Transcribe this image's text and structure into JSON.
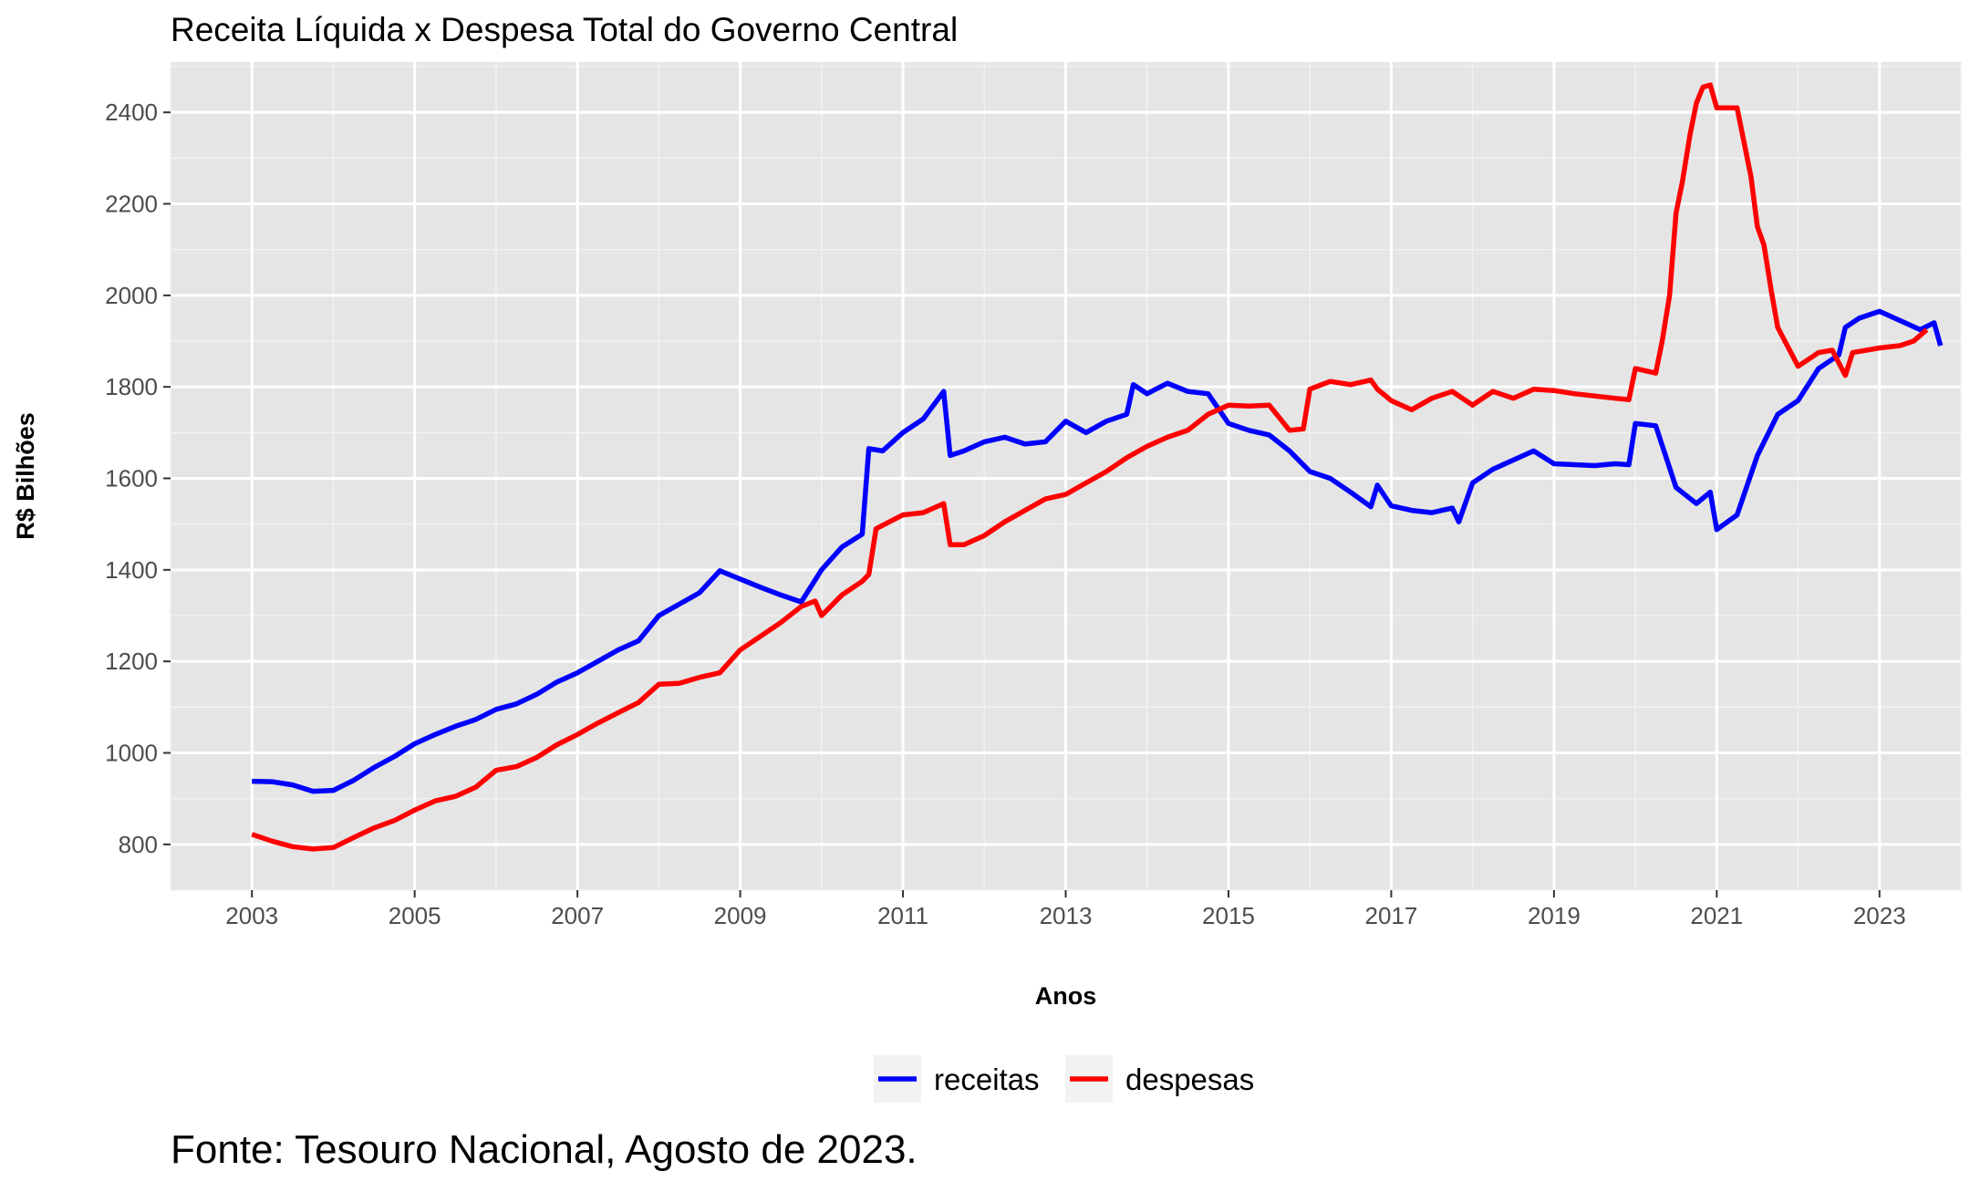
{
  "chart_data": {
    "type": "line",
    "title": "Receita Líquida x Despesa Total do Governo Central",
    "xlabel": "Anos",
    "ylabel": "R$ Bilhões",
    "caption": "Fonte: Tesouro Nacional, Agosto de 2023.",
    "xlim": [
      2002.0,
      2024.0
    ],
    "ylim": [
      700,
      2510
    ],
    "x_ticks": [
      "2003",
      "2005",
      "2007",
      "2009",
      "2011",
      "2013",
      "2015",
      "2017",
      "2019",
      "2021",
      "2023"
    ],
    "y_ticks": [
      "800",
      "1000",
      "1200",
      "1400",
      "1600",
      "1800",
      "2000",
      "2200",
      "2400"
    ],
    "grid": true,
    "legend_position": "bottom",
    "series": [
      {
        "name": "receitas",
        "color": "#0000FF",
        "points": [
          [
            2003.0,
            938
          ],
          [
            2003.25,
            937
          ],
          [
            2003.5,
            930
          ],
          [
            2003.75,
            916
          ],
          [
            2004.0,
            918
          ],
          [
            2004.25,
            940
          ],
          [
            2004.5,
            968
          ],
          [
            2004.75,
            992
          ],
          [
            2005.0,
            1020
          ],
          [
            2005.25,
            1040
          ],
          [
            2005.5,
            1058
          ],
          [
            2005.75,
            1073
          ],
          [
            2006.0,
            1095
          ],
          [
            2006.25,
            1107
          ],
          [
            2006.5,
            1128
          ],
          [
            2006.75,
            1155
          ],
          [
            2007.0,
            1175
          ],
          [
            2007.25,
            1200
          ],
          [
            2007.5,
            1225
          ],
          [
            2007.75,
            1245
          ],
          [
            2008.0,
            1300
          ],
          [
            2008.25,
            1325
          ],
          [
            2008.5,
            1350
          ],
          [
            2008.75,
            1398
          ],
          [
            2009.0,
            1380
          ],
          [
            2009.25,
            1362
          ],
          [
            2009.5,
            1345
          ],
          [
            2009.75,
            1330
          ],
          [
            2010.0,
            1400
          ],
          [
            2010.25,
            1450
          ],
          [
            2010.5,
            1478
          ],
          [
            2010.58,
            1665
          ],
          [
            2010.75,
            1660
          ],
          [
            2011.0,
            1700
          ],
          [
            2011.25,
            1730
          ],
          [
            2011.5,
            1790
          ],
          [
            2011.58,
            1650
          ],
          [
            2011.75,
            1660
          ],
          [
            2012.0,
            1680
          ],
          [
            2012.25,
            1690
          ],
          [
            2012.5,
            1675
          ],
          [
            2012.75,
            1680
          ],
          [
            2013.0,
            1725
          ],
          [
            2013.25,
            1700
          ],
          [
            2013.5,
            1725
          ],
          [
            2013.75,
            1740
          ],
          [
            2013.83,
            1805
          ],
          [
            2014.0,
            1785
          ],
          [
            2014.25,
            1808
          ],
          [
            2014.5,
            1790
          ],
          [
            2014.75,
            1785
          ],
          [
            2015.0,
            1720
          ],
          [
            2015.25,
            1705
          ],
          [
            2015.5,
            1695
          ],
          [
            2015.75,
            1660
          ],
          [
            2016.0,
            1615
          ],
          [
            2016.25,
            1600
          ],
          [
            2016.5,
            1570
          ],
          [
            2016.75,
            1538
          ],
          [
            2016.83,
            1585
          ],
          [
            2017.0,
            1540
          ],
          [
            2017.25,
            1530
          ],
          [
            2017.5,
            1525
          ],
          [
            2017.75,
            1535
          ],
          [
            2017.83,
            1505
          ],
          [
            2018.0,
            1590
          ],
          [
            2018.25,
            1620
          ],
          [
            2018.5,
            1640
          ],
          [
            2018.75,
            1660
          ],
          [
            2019.0,
            1632
          ],
          [
            2019.25,
            1630
          ],
          [
            2019.5,
            1628
          ],
          [
            2019.75,
            1632
          ],
          [
            2019.92,
            1630
          ],
          [
            2020.0,
            1720
          ],
          [
            2020.25,
            1715
          ],
          [
            2020.5,
            1580
          ],
          [
            2020.75,
            1545
          ],
          [
            2020.92,
            1570
          ],
          [
            2021.0,
            1488
          ],
          [
            2021.25,
            1520
          ],
          [
            2021.5,
            1650
          ],
          [
            2021.75,
            1740
          ],
          [
            2022.0,
            1770
          ],
          [
            2022.25,
            1840
          ],
          [
            2022.5,
            1870
          ],
          [
            2022.58,
            1930
          ],
          [
            2022.75,
            1950
          ],
          [
            2023.0,
            1965
          ],
          [
            2023.25,
            1945
          ],
          [
            2023.5,
            1925
          ],
          [
            2023.67,
            1940
          ],
          [
            2023.75,
            1890
          ]
        ]
      },
      {
        "name": "despesas",
        "color": "#FF0000",
        "points": [
          [
            2003.0,
            822
          ],
          [
            2003.25,
            807
          ],
          [
            2003.5,
            795
          ],
          [
            2003.75,
            790
          ],
          [
            2004.0,
            793
          ],
          [
            2004.25,
            815
          ],
          [
            2004.5,
            836
          ],
          [
            2004.75,
            852
          ],
          [
            2005.0,
            875
          ],
          [
            2005.25,
            895
          ],
          [
            2005.5,
            905
          ],
          [
            2005.75,
            925
          ],
          [
            2006.0,
            962
          ],
          [
            2006.25,
            970
          ],
          [
            2006.5,
            990
          ],
          [
            2006.75,
            1018
          ],
          [
            2007.0,
            1040
          ],
          [
            2007.25,
            1065
          ],
          [
            2007.5,
            1088
          ],
          [
            2007.75,
            1110
          ],
          [
            2008.0,
            1150
          ],
          [
            2008.25,
            1152
          ],
          [
            2008.5,
            1165
          ],
          [
            2008.75,
            1175
          ],
          [
            2009.0,
            1225
          ],
          [
            2009.25,
            1255
          ],
          [
            2009.5,
            1285
          ],
          [
            2009.75,
            1320
          ],
          [
            2009.92,
            1332
          ],
          [
            2010.0,
            1300
          ],
          [
            2010.25,
            1345
          ],
          [
            2010.5,
            1375
          ],
          [
            2010.58,
            1390
          ],
          [
            2010.67,
            1490
          ],
          [
            2011.0,
            1520
          ],
          [
            2011.25,
            1525
          ],
          [
            2011.5,
            1545
          ],
          [
            2011.58,
            1455
          ],
          [
            2011.75,
            1455
          ],
          [
            2012.0,
            1475
          ],
          [
            2012.25,
            1505
          ],
          [
            2012.5,
            1530
          ],
          [
            2012.75,
            1555
          ],
          [
            2013.0,
            1565
          ],
          [
            2013.25,
            1590
          ],
          [
            2013.5,
            1615
          ],
          [
            2013.75,
            1645
          ],
          [
            2014.0,
            1670
          ],
          [
            2014.25,
            1690
          ],
          [
            2014.5,
            1705
          ],
          [
            2014.75,
            1740
          ],
          [
            2015.0,
            1760
          ],
          [
            2015.25,
            1758
          ],
          [
            2015.5,
            1760
          ],
          [
            2015.75,
            1705
          ],
          [
            2015.92,
            1708
          ],
          [
            2016.0,
            1795
          ],
          [
            2016.25,
            1812
          ],
          [
            2016.5,
            1805
          ],
          [
            2016.75,
            1815
          ],
          [
            2016.83,
            1795
          ],
          [
            2017.0,
            1770
          ],
          [
            2017.25,
            1750
          ],
          [
            2017.5,
            1775
          ],
          [
            2017.75,
            1790
          ],
          [
            2018.0,
            1760
          ],
          [
            2018.25,
            1790
          ],
          [
            2018.5,
            1775
          ],
          [
            2018.75,
            1795
          ],
          [
            2019.0,
            1792
          ],
          [
            2019.25,
            1785
          ],
          [
            2019.5,
            1780
          ],
          [
            2019.75,
            1775
          ],
          [
            2019.92,
            1772
          ],
          [
            2020.0,
            1840
          ],
          [
            2020.25,
            1830
          ],
          [
            2020.33,
            1900
          ],
          [
            2020.42,
            2000
          ],
          [
            2020.5,
            2180
          ],
          [
            2020.58,
            2250
          ],
          [
            2020.67,
            2350
          ],
          [
            2020.75,
            2420
          ],
          [
            2020.83,
            2455
          ],
          [
            2020.92,
            2460
          ],
          [
            2021.0,
            2410
          ],
          [
            2021.25,
            2410
          ],
          [
            2021.42,
            2260
          ],
          [
            2021.5,
            2150
          ],
          [
            2021.58,
            2110
          ],
          [
            2021.67,
            2010
          ],
          [
            2021.75,
            1930
          ],
          [
            2022.0,
            1845
          ],
          [
            2022.25,
            1875
          ],
          [
            2022.42,
            1880
          ],
          [
            2022.58,
            1825
          ],
          [
            2022.67,
            1875
          ],
          [
            2023.0,
            1885
          ],
          [
            2023.25,
            1890
          ],
          [
            2023.42,
            1900
          ],
          [
            2023.58,
            1925
          ]
        ]
      }
    ]
  }
}
